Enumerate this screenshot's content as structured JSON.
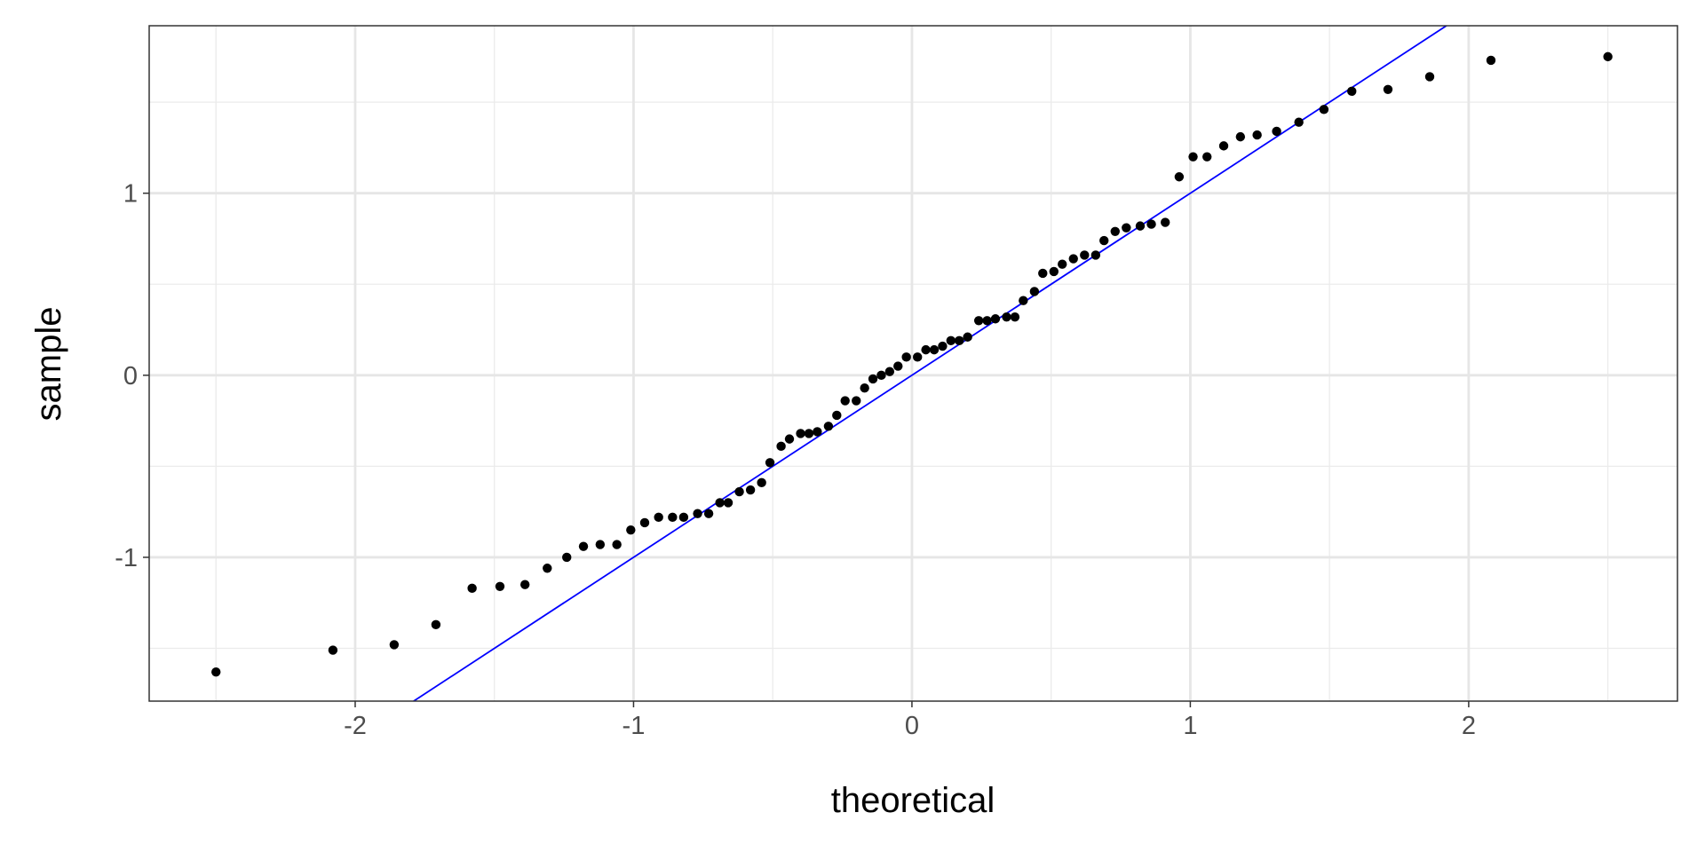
{
  "chart_data": {
    "type": "scatter",
    "title": "",
    "xlabel": "theoretical",
    "ylabel": "sample",
    "xlim": [
      -2.74,
      2.75
    ],
    "ylim": [
      -1.79,
      1.92
    ],
    "grid": true,
    "x_ticks": [
      -2,
      -1,
      0,
      1,
      2
    ],
    "x_tick_labels": [
      "-2",
      "-1",
      "0",
      "1",
      "2"
    ],
    "y_ticks": [
      -1,
      0,
      1
    ],
    "y_tick_labels": [
      "-1",
      "0",
      "1"
    ],
    "point_color": "#000000",
    "reference_line": {
      "slope": 1,
      "intercept": 0,
      "color": "#0000FF"
    },
    "x": [
      -2.5,
      -2.08,
      -1.86,
      -1.71,
      -1.58,
      -1.48,
      -1.39,
      -1.31,
      -1.24,
      -1.18,
      -1.12,
      -1.06,
      -1.01,
      -0.96,
      -0.91,
      -0.86,
      -0.82,
      -0.77,
      -0.73,
      -0.69,
      -0.66,
      -0.62,
      -0.58,
      -0.54,
      -0.51,
      -0.47,
      -0.44,
      -0.4,
      -0.37,
      -0.34,
      -0.3,
      -0.27,
      -0.24,
      -0.2,
      -0.17,
      -0.14,
      -0.11,
      -0.08,
      -0.05,
      -0.02,
      0.02,
      0.05,
      0.08,
      0.11,
      0.14,
      0.17,
      0.2,
      0.24,
      0.27,
      0.3,
      0.34,
      0.37,
      0.4,
      0.44,
      0.47,
      0.51,
      0.54,
      0.58,
      0.62,
      0.66,
      0.69,
      0.73,
      0.77,
      0.82,
      0.86,
      0.91,
      0.96,
      1.01,
      1.06,
      1.12,
      1.18,
      1.24,
      1.31,
      1.39,
      1.48,
      1.58,
      1.71,
      1.86,
      2.08,
      2.5
    ],
    "y": [
      -1.63,
      -1.51,
      -1.48,
      -1.37,
      -1.17,
      -1.16,
      -1.15,
      -1.06,
      -1.0,
      -0.94,
      -0.93,
      -0.93,
      -0.85,
      -0.81,
      -0.78,
      -0.78,
      -0.78,
      -0.76,
      -0.76,
      -0.7,
      -0.7,
      -0.64,
      -0.63,
      -0.59,
      -0.48,
      -0.39,
      -0.35,
      -0.32,
      -0.32,
      -0.31,
      -0.28,
      -0.22,
      -0.14,
      -0.14,
      -0.07,
      -0.02,
      0.0,
      0.02,
      0.05,
      0.1,
      0.1,
      0.14,
      0.14,
      0.16,
      0.19,
      0.19,
      0.21,
      0.3,
      0.3,
      0.31,
      0.32,
      0.32,
      0.41,
      0.46,
      0.56,
      0.57,
      0.61,
      0.64,
      0.66,
      0.66,
      0.74,
      0.79,
      0.81,
      0.82,
      0.83,
      0.84,
      1.09,
      1.2,
      1.2,
      1.26,
      1.31,
      1.32,
      1.34,
      1.39,
      1.46,
      1.56,
      1.57,
      1.64,
      1.73,
      1.75
    ]
  }
}
